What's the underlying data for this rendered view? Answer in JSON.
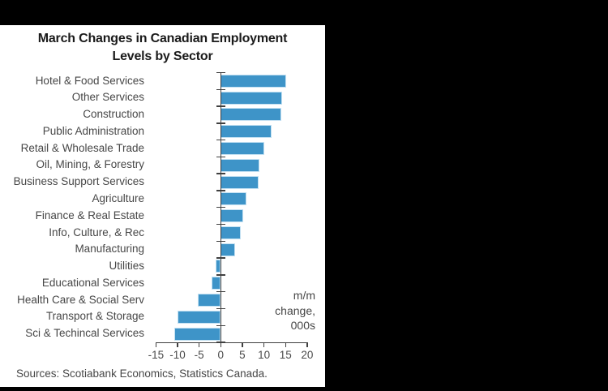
{
  "title": {
    "line1": "March Changes in Canadian Employment",
    "line2": "Levels by Sector"
  },
  "annotation": {
    "lines": [
      "m/m",
      "change,",
      "000s"
    ]
  },
  "source_note": "Sources: Scotiabank Economics, Statistics Canada.",
  "chart_data": {
    "type": "bar",
    "orientation": "horizontal",
    "title": "March Changes in Canadian Employment Levels by Sector",
    "unit_label": "m/m change, 000s",
    "categories": [
      "Hotel & Food Services",
      "Other Services",
      "Construction",
      "Public Administration",
      "Retail & Wholesale Trade",
      "Oil, Mining, & Forestry",
      "Business Support Services",
      "Agriculture",
      "Finance & Real Estate",
      "Info, Culture, & Rec",
      "Manufacturing",
      "Utilities",
      "Educational Services",
      "Health Care & Social Serv",
      "Transport & Storage",
      "Sci & Techincal Services"
    ],
    "values": [
      14.9,
      14.1,
      13.8,
      11.6,
      9.9,
      8.8,
      8.6,
      5.8,
      5.0,
      4.4,
      3.2,
      -1.0,
      -1.9,
      -5.2,
      -9.8,
      -10.6
    ],
    "x_ticks": [
      -15,
      -10,
      -5,
      0,
      5,
      10,
      15,
      20
    ],
    "xlim": [
      -15,
      20
    ],
    "grid": false,
    "legend": false,
    "colors": {
      "bar_fill": "#3E94C8",
      "bar_border": "#C2E0F2",
      "axis": "#404040",
      "tick_label": "#4a4a4a",
      "category_label": "#474747",
      "title": "#1a1a1a",
      "panel_background": "#ffffff",
      "page_background": "#000000"
    }
  }
}
